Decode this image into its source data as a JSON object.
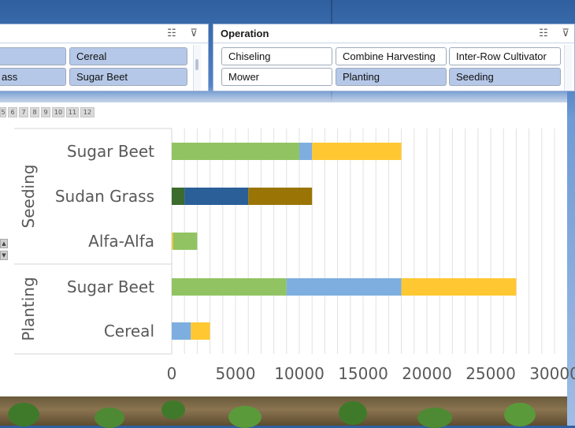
{
  "slicers": {
    "left": {
      "tiles": [
        {
          "label": "",
          "selected": true
        },
        {
          "label": "Cereal",
          "selected": true
        },
        {
          "label": "ass",
          "selected": true
        },
        {
          "label": "Sugar Beet",
          "selected": true
        }
      ],
      "icons": [
        "multi-select-icon",
        "clear-filter-icon"
      ]
    },
    "operation": {
      "title": "Operation",
      "tiles": [
        {
          "label": "Chiseling",
          "selected": false
        },
        {
          "label": "Combine Harvesting",
          "selected": false
        },
        {
          "label": "Inter-Row Cultivator",
          "selected": false
        },
        {
          "label": "Mower",
          "selected": false
        },
        {
          "label": "Planting",
          "selected": true
        },
        {
          "label": "Seeding",
          "selected": true
        }
      ],
      "icons": [
        "multi-select-icon",
        "clear-filter-icon"
      ]
    }
  },
  "page_tabs": [
    "5",
    "6",
    "7",
    "8",
    "9",
    "10",
    "11",
    "12"
  ],
  "chart_data": {
    "type": "bar",
    "orientation": "horizontal",
    "stacked": true,
    "groups": [
      {
        "name": "Seeding",
        "categories": [
          "Sugar Beet",
          "Sudan Grass",
          "Alfa-Alfa"
        ]
      },
      {
        "name": "Planting",
        "categories": [
          "Sugar Beet",
          "Cereal"
        ]
      }
    ],
    "segments": [
      {
        "group": "Seeding",
        "category": "Sugar Beet",
        "values": [
          10000,
          1000,
          7000
        ],
        "colors": [
          "#92c363",
          "#7eaee0",
          "#ffc833"
        ]
      },
      {
        "group": "Seeding",
        "category": "Sudan Grass",
        "values": [
          1000,
          5000,
          5000
        ],
        "colors": [
          "#3b6b2d",
          "#2a5f98",
          "#9a7506"
        ]
      },
      {
        "group": "Seeding",
        "category": "Alfa-Alfa",
        "values": [
          100,
          1900
        ],
        "colors": [
          "#ffc833",
          "#92c363"
        ]
      },
      {
        "group": "Planting",
        "category": "Sugar Beet",
        "values": [
          9000,
          9000,
          9000
        ],
        "colors": [
          "#92c363",
          "#7eaee0",
          "#ffc833"
        ]
      },
      {
        "group": "Planting",
        "category": "Cereal",
        "values": [
          1500,
          1500
        ],
        "colors": [
          "#7eaee0",
          "#ffc833"
        ]
      }
    ],
    "x_ticks": [
      "0",
      "5000",
      "10000",
      "15000",
      "20000",
      "25000",
      "30000"
    ],
    "xlim": [
      0,
      30000
    ],
    "grid": true,
    "title": "",
    "xlabel": "",
    "ylabel": ""
  }
}
